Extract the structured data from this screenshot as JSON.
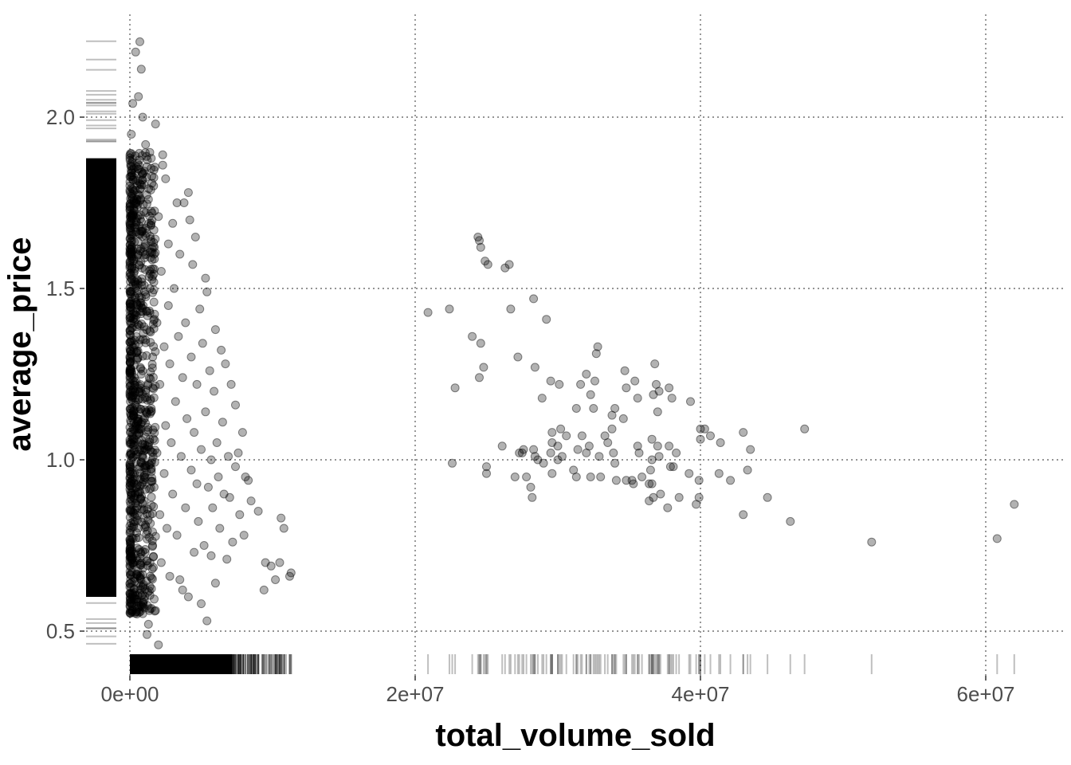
{
  "chart_data": {
    "type": "scatter",
    "title": "",
    "xlabel": "total_volume_sold",
    "ylabel": "average_price",
    "xlim": [
      0,
      62000000
    ],
    "ylim": [
      0.44,
      2.24
    ],
    "x_ticks": [
      {
        "value": 0,
        "label": "0e+00"
      },
      {
        "value": 20000000,
        "label": "2e+07"
      },
      {
        "value": 40000000,
        "label": "4e+07"
      },
      {
        "value": 60000000,
        "label": "6e+07"
      }
    ],
    "y_ticks": [
      {
        "value": 0.5,
        "label": "0.5"
      },
      {
        "value": 1.0,
        "label": "1.0"
      },
      {
        "value": 1.5,
        "label": "1.5"
      },
      {
        "value": 2.0,
        "label": "2.0"
      }
    ],
    "grid": true,
    "marginal_rug": true,
    "point_color": "#000000",
    "point_opacity": 0.3,
    "points": [
      [
        62000000,
        0.87
      ],
      [
        60800000,
        0.77
      ],
      [
        52000000,
        0.76
      ],
      [
        46300000,
        0.82
      ],
      [
        47300000,
        1.09
      ],
      [
        44700000,
        0.89
      ],
      [
        43000000,
        0.84
      ],
      [
        43000000,
        1.08
      ],
      [
        43300000,
        0.97
      ],
      [
        43500000,
        1.03
      ],
      [
        42100000,
        0.94
      ],
      [
        41300000,
        0.96
      ],
      [
        41400000,
        1.05
      ],
      [
        40700000,
        1.07
      ],
      [
        40300000,
        1.09
      ],
      [
        40000000,
        1.06
      ],
      [
        40000000,
        1.09
      ],
      [
        39700000,
        0.87
      ],
      [
        39900000,
        0.89
      ],
      [
        39900000,
        0.94
      ],
      [
        39200000,
        0.96
      ],
      [
        39300000,
        1.17
      ],
      [
        38500000,
        0.89
      ],
      [
        38300000,
        1.02
      ],
      [
        38100000,
        0.98
      ],
      [
        37900000,
        0.98
      ],
      [
        38000000,
        1.18
      ],
      [
        37800000,
        1.04
      ],
      [
        37800000,
        1.21
      ],
      [
        37700000,
        0.86
      ],
      [
        37200000,
        0.9
      ],
      [
        37100000,
        1.01
      ],
      [
        37000000,
        1.04
      ],
      [
        37000000,
        1.14
      ],
      [
        37100000,
        1.2
      ],
      [
        36900000,
        1.22
      ],
      [
        36700000,
        0.89
      ],
      [
        36600000,
        0.93
      ],
      [
        36500000,
        0.97
      ],
      [
        36600000,
        1.0
      ],
      [
        36600000,
        1.06
      ],
      [
        36700000,
        1.19
      ],
      [
        36800000,
        1.28
      ],
      [
        36400000,
        0.93
      ],
      [
        36400000,
        0.88
      ],
      [
        35900000,
        0.95
      ],
      [
        35700000,
        1.02
      ],
      [
        35600000,
        1.04
      ],
      [
        35300000,
        0.93
      ],
      [
        35200000,
        0.94
      ],
      [
        35400000,
        1.23
      ],
      [
        35600000,
        1.18
      ],
      [
        34800000,
        0.94
      ],
      [
        34800000,
        1.21
      ],
      [
        34700000,
        1.26
      ],
      [
        34600000,
        1.12
      ],
      [
        34100000,
        0.94
      ],
      [
        34000000,
        0.99
      ],
      [
        33900000,
        1.02
      ],
      [
        33800000,
        1.09
      ],
      [
        33800000,
        1.13
      ],
      [
        34000000,
        1.15
      ],
      [
        33500000,
        1.05
      ],
      [
        33300000,
        1.07
      ],
      [
        33000000,
        0.95
      ],
      [
        32900000,
        1.01
      ],
      [
        32800000,
        1.33
      ],
      [
        32700000,
        1.31
      ],
      [
        32500000,
        1.15
      ],
      [
        32600000,
        1.23
      ],
      [
        32300000,
        0.95
      ],
      [
        32200000,
        1.04
      ],
      [
        32300000,
        1.19
      ],
      [
        32000000,
        1.02
      ],
      [
        32000000,
        1.25
      ],
      [
        31700000,
        1.07
      ],
      [
        31600000,
        1.22
      ],
      [
        31300000,
        0.95
      ],
      [
        31300000,
        1.15
      ],
      [
        31400000,
        1.03
      ],
      [
        31100000,
        0.97
      ],
      [
        30600000,
        1.07
      ],
      [
        30300000,
        1.01
      ],
      [
        30000000,
        1.0
      ],
      [
        30000000,
        1.04
      ],
      [
        30200000,
        1.09
      ],
      [
        30100000,
        1.22
      ],
      [
        29600000,
        0.96
      ],
      [
        29500000,
        1.02
      ],
      [
        29600000,
        1.05
      ],
      [
        29600000,
        1.08
      ],
      [
        29500000,
        1.23
      ],
      [
        29200000,
        1.41
      ],
      [
        29000000,
        0.99
      ],
      [
        28900000,
        1.18
      ],
      [
        28600000,
        1.0
      ],
      [
        28400000,
        1.01
      ],
      [
        28300000,
        1.03
      ],
      [
        28400000,
        1.27
      ],
      [
        28100000,
        0.92
      ],
      [
        28200000,
        0.89
      ],
      [
        28300000,
        1.47
      ],
      [
        27500000,
        1.02
      ],
      [
        27800000,
        0.95
      ],
      [
        27300000,
        1.02
      ],
      [
        27600000,
        1.03
      ],
      [
        27000000,
        0.95
      ],
      [
        27200000,
        1.3
      ],
      [
        26700000,
        1.44
      ],
      [
        26600000,
        1.57
      ],
      [
        26300000,
        1.56
      ],
      [
        26100000,
        1.04
      ],
      [
        25100000,
        1.57
      ],
      [
        24900000,
        1.58
      ],
      [
        24600000,
        1.62
      ],
      [
        24500000,
        1.64
      ],
      [
        24400000,
        1.65
      ],
      [
        24000000,
        1.36
      ],
      [
        24500000,
        1.24
      ],
      [
        24800000,
        1.27
      ],
      [
        24600000,
        1.34
      ],
      [
        25000000,
        0.96
      ],
      [
        25000000,
        0.98
      ],
      [
        22800000,
        1.21
      ],
      [
        22400000,
        1.44
      ],
      [
        22600000,
        0.99
      ],
      [
        20900000,
        1.43
      ],
      [
        11200000,
        0.66
      ],
      [
        11300000,
        0.67
      ],
      [
        10800000,
        0.8
      ],
      [
        10600000,
        0.83
      ],
      [
        10500000,
        0.7
      ],
      [
        10200000,
        0.65
      ],
      [
        9900000,
        0.69
      ],
      [
        9500000,
        0.7
      ],
      [
        9400000,
        0.62
      ],
      [
        9000000,
        0.85
      ],
      [
        8500000,
        0.88
      ],
      [
        8300000,
        0.94
      ],
      [
        8100000,
        0.95
      ],
      [
        8000000,
        0.78
      ],
      [
        7900000,
        1.08
      ],
      [
        7700000,
        0.84
      ],
      [
        7600000,
        1.02
      ],
      [
        7400000,
        1.16
      ],
      [
        7400000,
        0.98
      ],
      [
        7200000,
        0.76
      ],
      [
        7100000,
        1.22
      ],
      [
        7000000,
        0.89
      ],
      [
        6900000,
        1.01
      ],
      [
        6800000,
        0.71
      ],
      [
        6700000,
        1.28
      ],
      [
        6600000,
        0.9
      ],
      [
        6500000,
        1.11
      ],
      [
        6400000,
        1.32
      ],
      [
        6300000,
        0.8
      ],
      [
        6200000,
        0.95
      ],
      [
        6100000,
        1.05
      ],
      [
        6000000,
        0.64
      ],
      [
        6000000,
        1.38
      ],
      [
        5900000,
        1.2
      ],
      [
        5800000,
        0.86
      ],
      [
        5700000,
        0.72
      ],
      [
        5700000,
        1.0
      ],
      [
        5600000,
        1.26
      ],
      [
        5500000,
        0.92
      ],
      [
        5400000,
        0.53
      ],
      [
        5400000,
        1.49
      ],
      [
        5300000,
        1.53
      ],
      [
        5300000,
        1.14
      ],
      [
        5200000,
        0.75
      ],
      [
        5100000,
        1.34
      ],
      [
        5000000,
        0.58
      ],
      [
        5000000,
        1.03
      ],
      [
        4900000,
        1.44
      ],
      [
        4800000,
        0.82
      ],
      [
        4700000,
        1.22
      ],
      [
        4700000,
        0.93
      ],
      [
        4600000,
        1.65
      ],
      [
        4500000,
        1.08
      ],
      [
        4500000,
        0.73
      ],
      [
        4400000,
        1.57
      ],
      [
        4300000,
        1.3
      ],
      [
        4300000,
        0.97
      ],
      [
        4200000,
        1.7
      ],
      [
        4100000,
        1.78
      ],
      [
        4100000,
        0.6
      ],
      [
        4000000,
        1.12
      ],
      [
        3900000,
        1.4
      ],
      [
        3900000,
        0.86
      ],
      [
        3800000,
        1.75
      ],
      [
        3700000,
        0.62
      ],
      [
        3700000,
        1.24
      ],
      [
        3600000,
        1.01
      ],
      [
        3500000,
        1.6
      ],
      [
        3500000,
        0.65
      ],
      [
        3400000,
        1.36
      ],
      [
        3300000,
        1.75
      ],
      [
        3300000,
        0.78
      ],
      [
        3200000,
        1.17
      ],
      [
        3100000,
        1.5
      ],
      [
        3000000,
        1.69
      ],
      [
        3000000,
        0.9
      ],
      [
        2900000,
        1.05
      ],
      [
        2800000,
        1.28
      ],
      [
        2800000,
        0.66
      ],
      [
        2700000,
        1.45
      ],
      [
        2700000,
        1.63
      ],
      [
        2600000,
        0.8
      ],
      [
        2500000,
        1.1
      ],
      [
        2500000,
        1.82
      ],
      [
        2400000,
        1.33
      ],
      [
        2400000,
        0.96
      ],
      [
        2300000,
        1.86
      ],
      [
        2300000,
        1.89
      ],
      [
        2200000,
        0.7
      ],
      [
        2200000,
        1.55
      ],
      [
        2100000,
        1.22
      ],
      [
        2100000,
        0.84
      ],
      [
        2000000,
        1.71
      ],
      [
        2000000,
        0.46
      ],
      [
        1900000,
        1.4
      ],
      [
        1900000,
        1.02
      ],
      [
        1800000,
        1.98
      ],
      [
        1800000,
        0.56
      ],
      [
        1700000,
        1.6
      ],
      [
        1700000,
        0.92
      ],
      [
        1600000,
        1.3
      ],
      [
        1600000,
        0.75
      ],
      [
        1500000,
        1.88
      ],
      [
        1500000,
        1.15
      ],
      [
        1400000,
        0.63
      ],
      [
        1400000,
        1.5
      ],
      [
        1300000,
        0.52
      ],
      [
        1300000,
        1.76
      ],
      [
        1200000,
        1.04
      ],
      [
        1200000,
        0.49
      ],
      [
        1100000,
        1.92
      ],
      [
        1100000,
        1.35
      ],
      [
        1000000,
        0.88
      ],
      [
        1000000,
        1.62
      ],
      [
        900000,
        2.0
      ],
      [
        900000,
        0.57
      ],
      [
        800000,
        2.14
      ],
      [
        800000,
        1.25
      ],
      [
        700000,
        2.22
      ],
      [
        700000,
        0.98
      ],
      [
        600000,
        2.06
      ],
      [
        600000,
        1.45
      ],
      [
        500000,
        0.55
      ],
      [
        500000,
        1.8
      ],
      [
        400000,
        2.19
      ],
      [
        400000,
        1.1
      ],
      [
        300000,
        0.62
      ],
      [
        300000,
        1.68
      ],
      [
        200000,
        2.04
      ],
      [
        200000,
        0.7
      ],
      [
        100000,
        0.58
      ],
      [
        100000,
        1.95
      ]
    ]
  }
}
